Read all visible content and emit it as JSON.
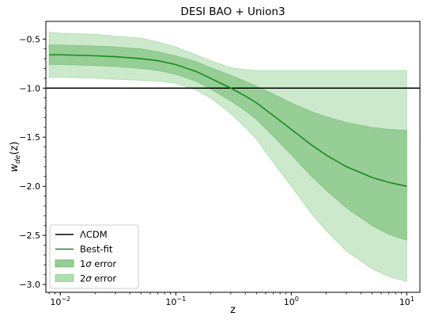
{
  "chart_data": {
    "type": "line",
    "title": "DESI BAO + Union3",
    "xlabel": "z",
    "ylabel_parts": {
      "base": "w",
      "sub": "de",
      "tail": "(z)"
    },
    "xscale": "log",
    "xlim": [
      0.0075,
      13
    ],
    "ylim": [
      -3.08,
      -0.32
    ],
    "x_ticks": [
      {
        "value": 0.01,
        "base": "10",
        "exp": "−2"
      },
      {
        "value": 0.1,
        "base": "10",
        "exp": "−1"
      },
      {
        "value": 1,
        "base": "10",
        "exp": "0"
      },
      {
        "value": 10,
        "base": "10",
        "exp": "1"
      }
    ],
    "y_ticks": [
      {
        "value": -0.5,
        "label": "−0.5"
      },
      {
        "value": -1.0,
        "label": "−1.0"
      },
      {
        "value": -1.5,
        "label": "−1.5"
      },
      {
        "value": -2.0,
        "label": "−2.0"
      },
      {
        "value": -2.5,
        "label": "−2.5"
      },
      {
        "value": -3.0,
        "label": "−3.0"
      }
    ],
    "reference_line": {
      "name": "ΛCDM",
      "y": -1.0,
      "color": "#000000"
    },
    "x": [
      0.008,
      0.01,
      0.02,
      0.03,
      0.05,
      0.07,
      0.1,
      0.15,
      0.2,
      0.3,
      0.4,
      0.5,
      0.7,
      1.0,
      1.5,
      2.0,
      3.0,
      5.0,
      7.0,
      10.0
    ],
    "series": [
      {
        "name": "Best-fit",
        "type": "line",
        "color": "#1a8a1a",
        "values": [
          -0.66,
          -0.66,
          -0.67,
          -0.68,
          -0.7,
          -0.72,
          -0.76,
          -0.83,
          -0.9,
          -1.0,
          -1.08,
          -1.15,
          -1.28,
          -1.42,
          -1.58,
          -1.68,
          -1.8,
          -1.91,
          -1.96,
          -2.0
        ]
      },
      {
        "name": "1σ error",
        "type": "band",
        "color": "#6ab86a",
        "opacity": 0.55,
        "upper": [
          -0.56,
          -0.56,
          -0.57,
          -0.58,
          -0.6,
          -0.63,
          -0.67,
          -0.73,
          -0.79,
          -0.87,
          -0.93,
          -0.98,
          -1.06,
          -1.15,
          -1.24,
          -1.29,
          -1.35,
          -1.4,
          -1.42,
          -1.43
        ],
        "lower": [
          -0.76,
          -0.76,
          -0.77,
          -0.78,
          -0.8,
          -0.82,
          -0.86,
          -0.93,
          -1.01,
          -1.13,
          -1.23,
          -1.32,
          -1.49,
          -1.68,
          -1.9,
          -2.04,
          -2.22,
          -2.4,
          -2.49,
          -2.55
        ]
      },
      {
        "name": "2σ error",
        "type": "band",
        "color": "#8fcf8f",
        "opacity": 0.45,
        "upper": [
          -0.43,
          -0.44,
          -0.45,
          -0.47,
          -0.49,
          -0.53,
          -0.58,
          -0.66,
          -0.72,
          -0.79,
          -0.81,
          -0.82,
          -0.82,
          -0.82,
          -0.82,
          -0.82,
          -0.82,
          -0.82,
          -0.82,
          -0.82
        ],
        "lower": [
          -0.89,
          -0.89,
          -0.9,
          -0.91,
          -0.92,
          -0.93,
          -0.95,
          -1.02,
          -1.1,
          -1.26,
          -1.4,
          -1.52,
          -1.76,
          -2.0,
          -2.28,
          -2.45,
          -2.66,
          -2.84,
          -2.92,
          -2.97
        ]
      }
    ],
    "legend": {
      "placement": "lower-left",
      "entries": [
        {
          "label": "ΛCDM",
          "kind": "line",
          "color": "#000000"
        },
        {
          "label": "Best-fit",
          "kind": "line",
          "color": "#1a8a1a"
        },
        {
          "label_parts": {
            "pre": "1",
            "sym": "σ",
            "post": " error"
          },
          "kind": "patch",
          "color": "#6ab86a"
        },
        {
          "label_parts": {
            "pre": "2",
            "sym": "σ",
            "post": " error"
          },
          "kind": "patch",
          "color": "#8fcf8f"
        }
      ]
    },
    "grid": false
  }
}
